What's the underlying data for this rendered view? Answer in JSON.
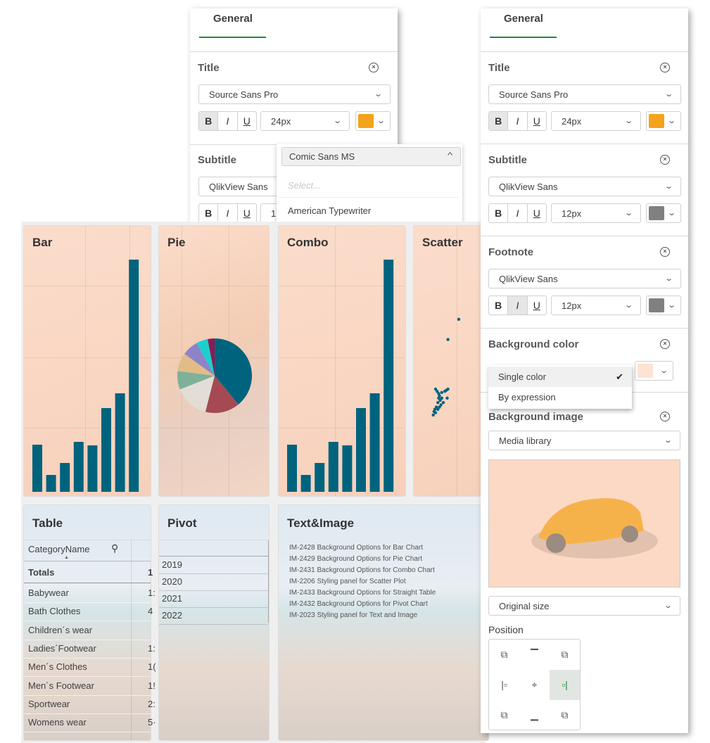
{
  "left_panel": {
    "tab": "General",
    "title_label": "Title",
    "title_font": "Source Sans Pro",
    "title_size": "24px",
    "title_color": "#f5a21c",
    "subtitle_label": "Subtitle",
    "subtitle_font": "QlikView Sans",
    "subtitle_size_partial": "1",
    "format_buttons": [
      "B",
      "I",
      "U"
    ],
    "font_dropdown": {
      "selected": "Comic Sans MS",
      "placeholder": "Select...",
      "options": [
        "American Typewriter"
      ]
    }
  },
  "right_panel": {
    "tab": "General",
    "title": {
      "label": "Title",
      "font": "Source Sans Pro",
      "size": "24px",
      "color": "#f5a21c"
    },
    "subtitle": {
      "label": "Subtitle",
      "font": "QlikView Sans",
      "size": "12px",
      "color": "#808080"
    },
    "footnote": {
      "label": "Footnote",
      "font": "QlikView Sans",
      "size": "12px",
      "color": "#808080"
    },
    "format_buttons": [
      "B",
      "I",
      "U"
    ],
    "background_color": {
      "label": "Background color",
      "swatch": "#fde3d1",
      "menu": [
        {
          "label": "Single color",
          "checked": true
        },
        {
          "label": "By expression",
          "checked": false
        }
      ],
      "check": "✔"
    },
    "background_image": {
      "label": "Background image",
      "source": "Media library",
      "size": "Original size",
      "position_label": "Position",
      "position_selected": "center-right"
    }
  },
  "dashboard": {
    "accent": "#00637e",
    "tiles": {
      "bar": "Bar",
      "pie": "Pie",
      "combo": "Combo",
      "scatter": "Scatter",
      "table": "Table",
      "pivot": "Pivot",
      "text_image": "Text&Image"
    },
    "table": {
      "column_header": "CategoryName",
      "totals_label": "Totals",
      "totals_value": "1",
      "rows": [
        {
          "name": "Babywear",
          "value": "1:"
        },
        {
          "name": "Bath Clothes",
          "value": "4"
        },
        {
          "name": "Children´s wear",
          "value": ""
        },
        {
          "name": "Ladies´Footwear",
          "value": "1:"
        },
        {
          "name": "Men´s Clothes",
          "value": "1("
        },
        {
          "name": "Men´s Footwear",
          "value": "1!"
        },
        {
          "name": "Sportwear",
          "value": "2:"
        },
        {
          "name": "Womens wear",
          "value": "5·"
        }
      ]
    },
    "pivot": {
      "rows": [
        "2019",
        "2020",
        "2021",
        "2022"
      ]
    },
    "text_image": {
      "lines": [
        "IM-2428 Background Options for Bar Chart",
        "IM-2429 Background Options for Pie Chart",
        "IM-2431 Background Options for Combo Chart",
        "IM-2206 Styling panel for Scatter Plot",
        "IM-2433 Background Options for Straight Table",
        "IM-2432 Background Options for Pivot Chart",
        "IM-2023 Styling panel for Text and Image"
      ]
    }
  },
  "chart_data": [
    {
      "type": "bar",
      "title": "Bar",
      "values": [
        67,
        24,
        41,
        71,
        66,
        119,
        140,
        330
      ],
      "color": "#00637e"
    },
    {
      "type": "pie",
      "title": "Pie",
      "values": [
        39,
        15,
        15,
        8,
        8,
        7,
        5,
        3
      ],
      "colors": [
        "#00637e",
        "#a54a53",
        "#e3ddd6",
        "#7fb09a",
        "#e2bc86",
        "#8d84c8",
        "#1ccfcf",
        "#8a1c52"
      ]
    },
    {
      "type": "bar",
      "title": "Combo",
      "values": [
        67,
        24,
        41,
        71,
        66,
        119,
        140,
        330
      ],
      "color": "#00637e"
    },
    {
      "type": "scatter",
      "title": "Scatter",
      "color": "#00637e",
      "points": [
        [
          60,
          92
        ],
        [
          46,
          74
        ],
        [
          30,
          30
        ],
        [
          32,
          28
        ],
        [
          34,
          26
        ],
        [
          35,
          24
        ],
        [
          38,
          27
        ],
        [
          34,
          22
        ],
        [
          36,
          20
        ],
        [
          33,
          18
        ],
        [
          37,
          16
        ],
        [
          31,
          14
        ],
        [
          29,
          12
        ],
        [
          28,
          10
        ],
        [
          33,
          12
        ],
        [
          35,
          14
        ],
        [
          30,
          9
        ],
        [
          27,
          7
        ],
        [
          38,
          22
        ],
        [
          40,
          18
        ],
        [
          42,
          28
        ],
        [
          44,
          29
        ],
        [
          46,
          30
        ],
        [
          45,
          22
        ]
      ]
    }
  ]
}
